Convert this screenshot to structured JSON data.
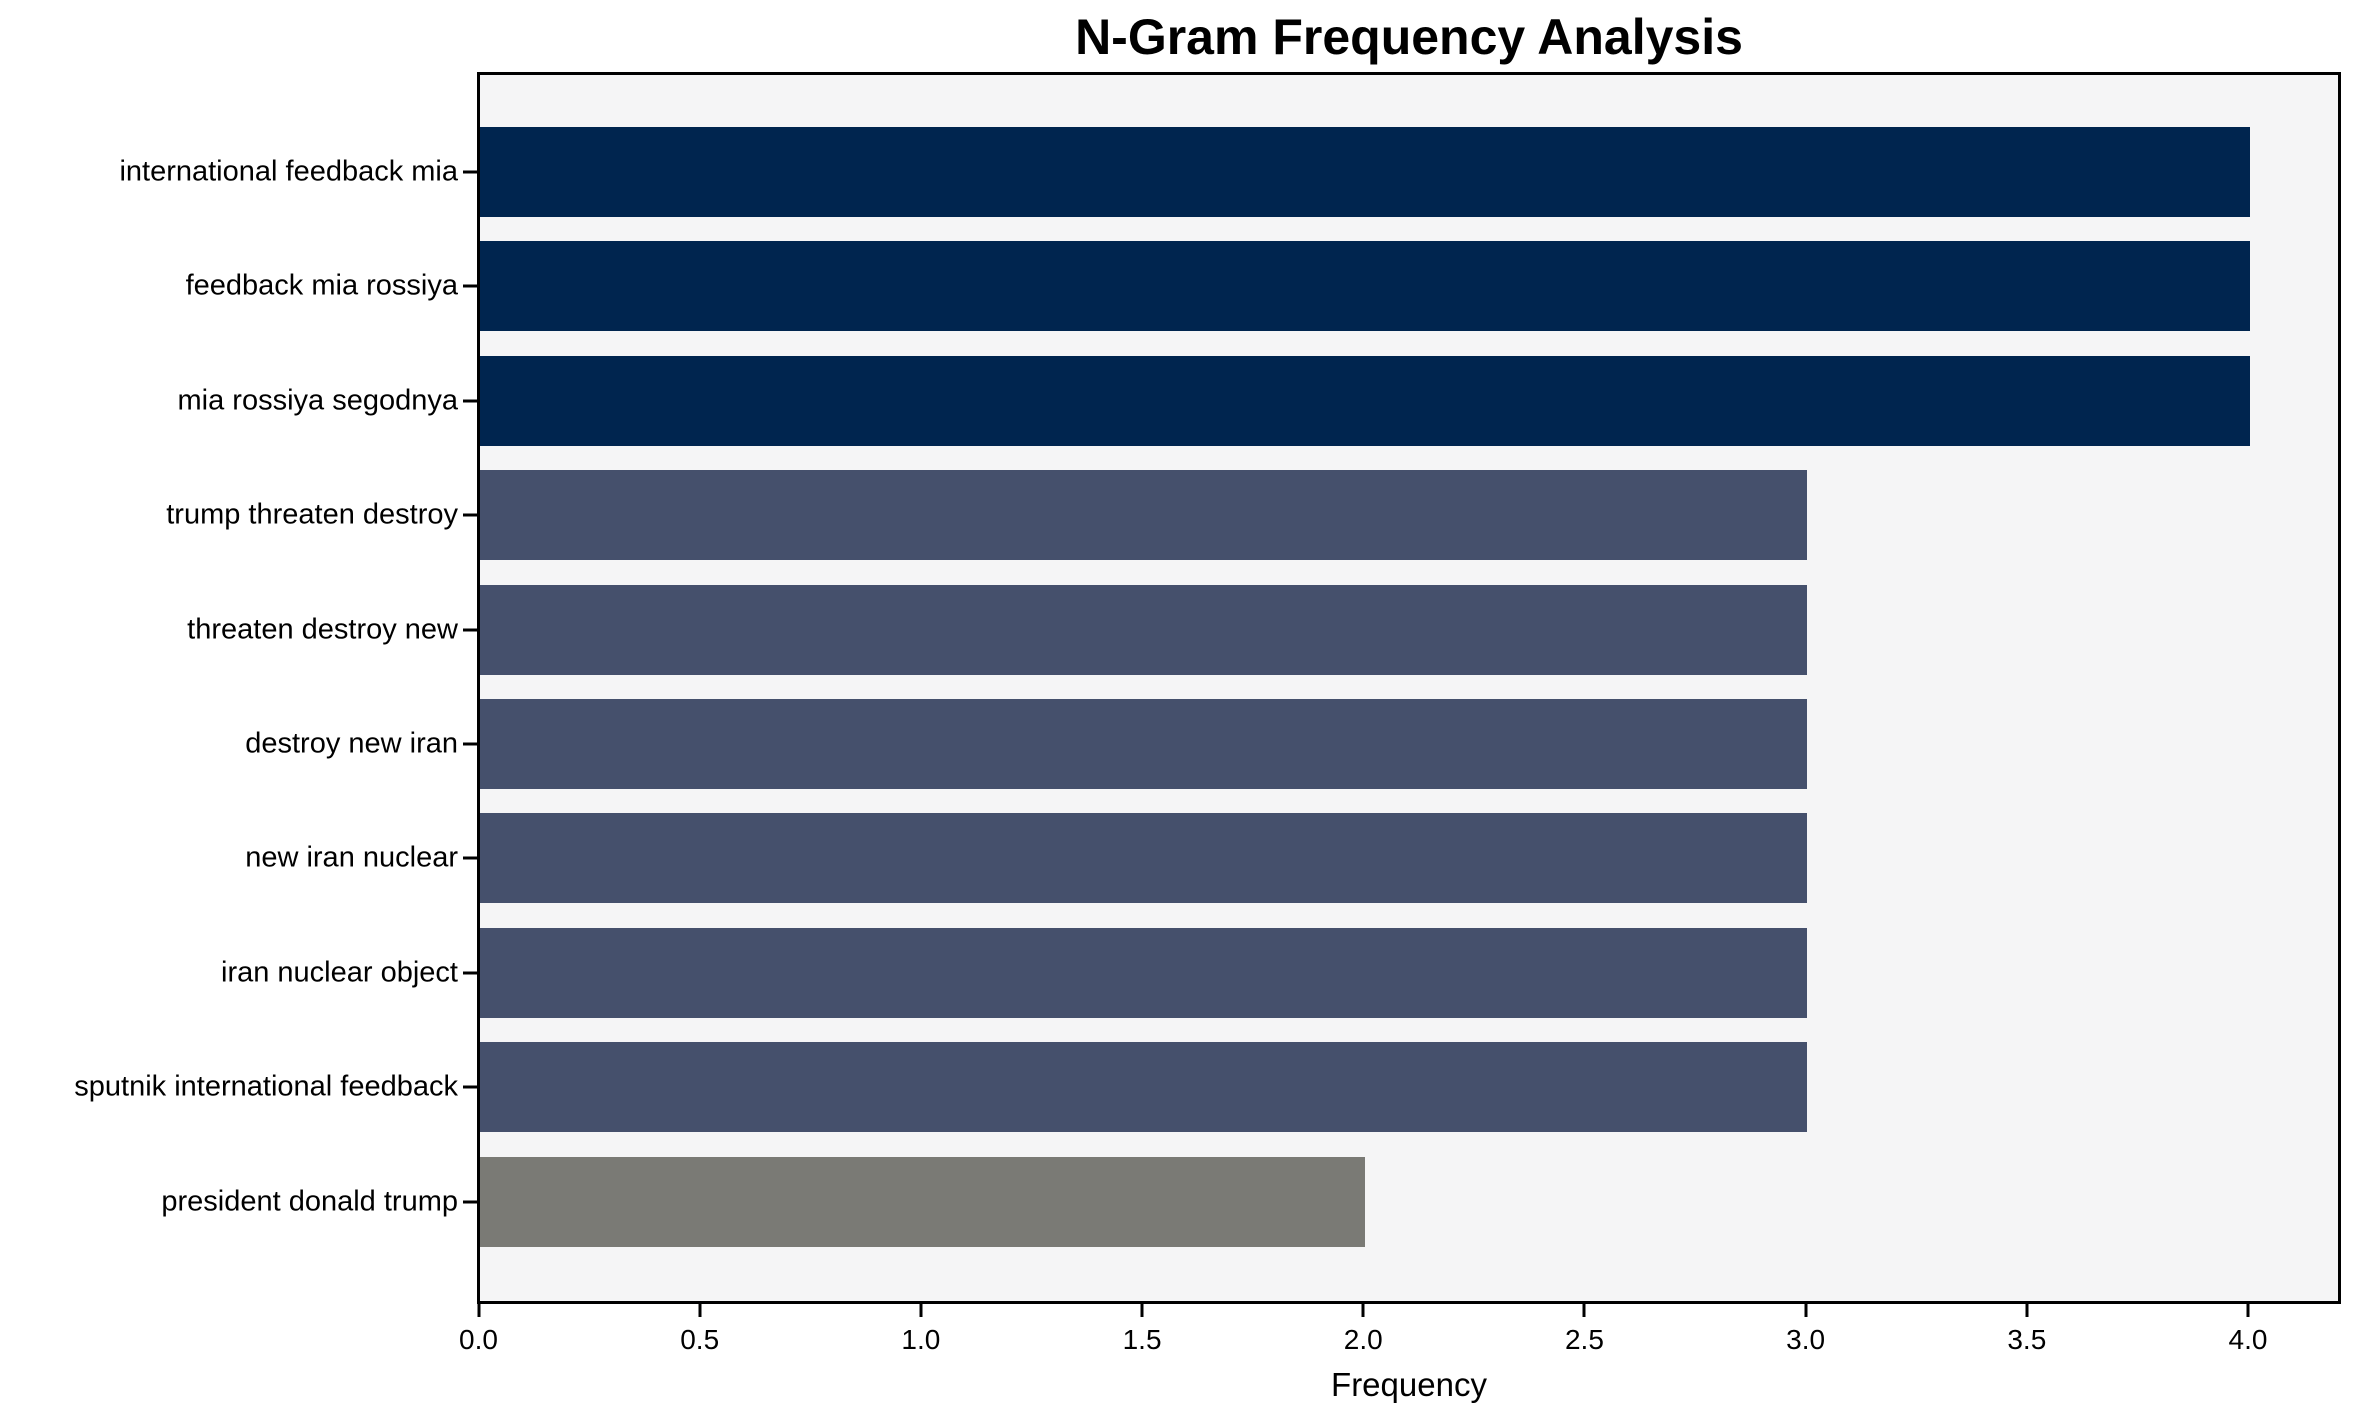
{
  "chart_data": {
    "type": "bar",
    "orientation": "horizontal",
    "title": "N-Gram Frequency Analysis",
    "xlabel": "Frequency",
    "ylabel": "",
    "categories": [
      "international feedback mia",
      "feedback mia rossiya",
      "mia rossiya segodnya",
      "trump threaten destroy",
      "threaten destroy new",
      "destroy new iran",
      "new iran nuclear",
      "iran nuclear object",
      "sputnik international feedback",
      "president donald trump"
    ],
    "values": [
      4,
      4,
      4,
      3,
      3,
      3,
      3,
      3,
      3,
      2
    ],
    "bar_colors": [
      "#00254f",
      "#00254f",
      "#00254f",
      "#45506c",
      "#45506c",
      "#45506c",
      "#45506c",
      "#45506c",
      "#45506c",
      "#7a7a75"
    ],
    "xlim": [
      0,
      4.2
    ],
    "xticks": [
      0.0,
      0.5,
      1.0,
      1.5,
      2.0,
      2.5,
      3.0,
      3.5,
      4.0
    ],
    "xtick_labels": [
      "0.0",
      "0.5",
      "1.0",
      "1.5",
      "2.0",
      "2.5",
      "3.0",
      "3.5",
      "4.0"
    ],
    "grid": false,
    "legend": null,
    "colors": {
      "plot_background": "#f5f5f6",
      "figure_background": "#ffffff",
      "axis": "#000000"
    }
  }
}
